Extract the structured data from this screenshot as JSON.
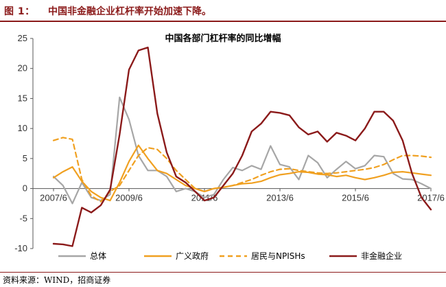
{
  "figure": {
    "label": "图 1：",
    "title": "中国非金融企业杠杆率开始加速下降。",
    "source": "资料来源：WIND，招商证券"
  },
  "chart_data": {
    "type": "line",
    "title": "中国各部门杠杆率的同比增幅",
    "x": [
      "2007/6",
      "2007/9",
      "2007/12",
      "2008/3",
      "2008/6",
      "2008/9",
      "2008/12",
      "2009/3",
      "2009/6",
      "2009/9",
      "2009/12",
      "2010/3",
      "2010/6",
      "2010/9",
      "2010/12",
      "2011/3",
      "2011/6",
      "2011/9",
      "2011/12",
      "2012/3",
      "2012/6",
      "2012/9",
      "2012/12",
      "2013/3",
      "2013/6",
      "2013/9",
      "2013/12",
      "2014/3",
      "2014/6",
      "2014/9",
      "2014/12",
      "2015/3",
      "2015/6",
      "2015/9",
      "2015/12",
      "2016/3",
      "2016/6",
      "2016/9",
      "2016/12",
      "2017/3",
      "2017/6"
    ],
    "x_tick_labels": [
      "2007/6",
      "2009/6",
      "2011/6",
      "2013/6",
      "2015/6",
      "2017/6"
    ],
    "ylim": [
      -10,
      25
    ],
    "y_ticks": [
      -10,
      -5,
      0,
      5,
      10,
      15,
      20,
      25
    ],
    "legend_position": "bottom",
    "series": [
      {
        "name": "总体",
        "color": "#a6a6a6",
        "style": "solid",
        "values": [
          2.0,
          0.5,
          -2.5,
          1.0,
          -1.5,
          -2.0,
          -1.0,
          15.2,
          11.5,
          5.5,
          3.0,
          3.0,
          2.0,
          -0.5,
          0.0,
          -0.5,
          -1.5,
          -1.0,
          1.5,
          3.5,
          3.0,
          3.8,
          3.2,
          7.1,
          4.0,
          3.6,
          1.5,
          5.5,
          4.3,
          1.8,
          3.2,
          4.5,
          3.3,
          3.8,
          5.5,
          5.3,
          2.5,
          1.6,
          1.5,
          0.8,
          0.0
        ]
      },
      {
        "name": "广义政府",
        "color": "#f0a020",
        "style": "solid",
        "values": [
          1.8,
          2.8,
          3.6,
          1.2,
          -0.5,
          -1.5,
          -2.0,
          1.0,
          4.5,
          7.2,
          5.0,
          3.0,
          2.5,
          1.5,
          0.5,
          0.0,
          -0.5,
          0.0,
          0.2,
          0.5,
          0.8,
          0.9,
          1.2,
          1.8,
          2.3,
          2.5,
          2.8,
          2.7,
          2.4,
          2.3,
          2.0,
          2.2,
          1.8,
          1.5,
          1.8,
          2.2,
          2.7,
          2.8,
          2.6,
          2.4,
          2.2
        ]
      },
      {
        "name": "居民与NPISHs",
        "color": "#f0a020",
        "style": "dashed",
        "values": [
          8.0,
          8.5,
          8.2,
          1.5,
          -1.2,
          -2.2,
          -0.5,
          0.5,
          3.0,
          5.5,
          6.8,
          6.5,
          5.0,
          3.0,
          1.5,
          0.0,
          -0.5,
          0.0,
          0.2,
          0.5,
          1.0,
          1.5,
          2.2,
          2.8,
          3.2,
          3.3,
          3.0,
          2.8,
          2.6,
          2.5,
          2.6,
          2.8,
          3.0,
          3.2,
          3.5,
          4.0,
          4.8,
          5.5,
          5.5,
          5.4,
          5.2
        ]
      },
      {
        "name": "非金融企业",
        "color": "#8b1a1a",
        "style": "solid",
        "values": [
          -9.2,
          -9.3,
          -9.6,
          -3.2,
          -4.0,
          -2.8,
          -0.2,
          9.0,
          19.8,
          23.0,
          23.5,
          12.5,
          6.0,
          2.0,
          1.0,
          -0.5,
          -2.0,
          -1.5,
          0.5,
          2.5,
          5.5,
          9.5,
          10.8,
          12.8,
          12.6,
          12.2,
          10.2,
          9.0,
          9.5,
          7.8,
          9.3,
          8.8,
          8.0,
          10.0,
          12.8,
          12.8,
          11.3,
          8.0,
          2.5,
          -1.5,
          -3.5
        ]
      }
    ]
  }
}
